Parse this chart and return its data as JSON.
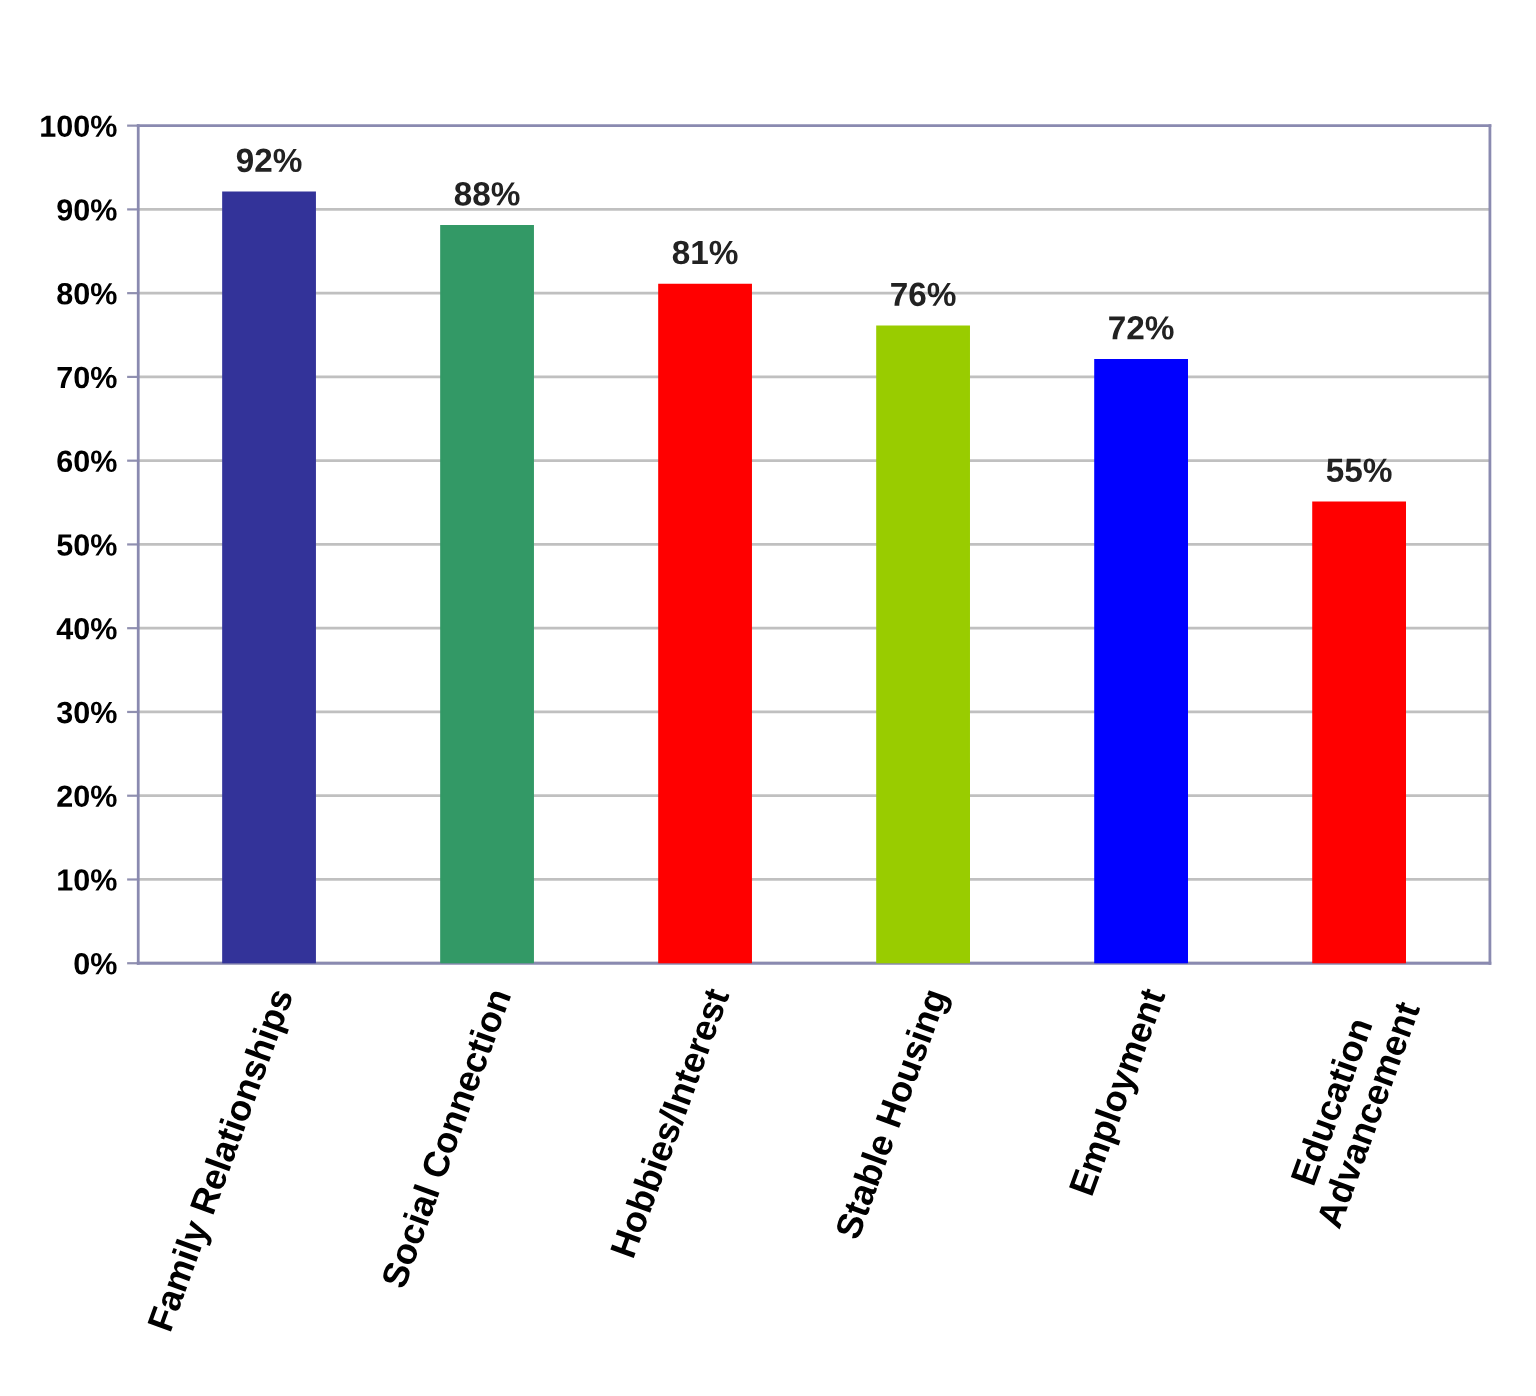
{
  "chart_data": {
    "type": "bar",
    "categories": [
      "Family Relationships",
      "Social Connection",
      "Hobbies/Interest",
      "Stable Housing",
      "Employment",
      "Education\nAdvancement"
    ],
    "values": [
      92,
      88,
      81,
      76,
      72,
      55
    ],
    "colors": [
      "#333399",
      "#339966",
      "#ff0000",
      "#99cc00",
      "#0000ff",
      "#ff0000"
    ],
    "value_labels": [
      "92%",
      "88%",
      "81%",
      "76%",
      "72%",
      "55%"
    ],
    "ylim": [
      0,
      100
    ],
    "yticks": [
      {
        "value": 0,
        "label": "0%"
      },
      {
        "value": 10,
        "label": "10%"
      },
      {
        "value": 20,
        "label": "20%"
      },
      {
        "value": 30,
        "label": "30%"
      },
      {
        "value": 40,
        "label": "40%"
      },
      {
        "value": 50,
        "label": "50%"
      },
      {
        "value": 60,
        "label": "60%"
      },
      {
        "value": 70,
        "label": "70%"
      },
      {
        "value": 80,
        "label": "80%"
      },
      {
        "value": 90,
        "label": "90%"
      },
      {
        "value": 100,
        "label": "100%"
      }
    ],
    "grid": "y"
  }
}
